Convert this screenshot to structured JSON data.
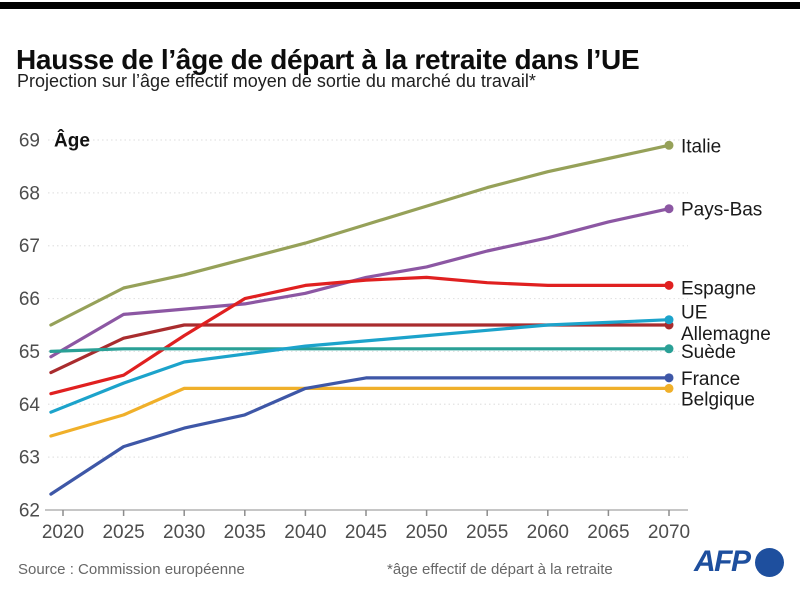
{
  "header": {
    "title": "Hausse de l’âge de départ à la retraite dans l’UE",
    "subtitle": "Projection sur l’âge effectif moyen de sortie du marché du travail*"
  },
  "footer": {
    "source": "Source : Commission européenne",
    "note": "*âge effectif de départ à la retraite",
    "logo": "AFP"
  },
  "colors": {
    "afp_blue": "#1e4f9e",
    "grid": "#e3e3e3",
    "axis": "#b3b3b3",
    "tick": "#8c8c8c",
    "axis_text": "#4d4d4d",
    "label_text": "#1a1a1a"
  },
  "chart_data": {
    "type": "line",
    "ylabel": "Âge",
    "ylim": [
      62,
      69
    ],
    "yticks": [
      69,
      68,
      67,
      66,
      65,
      64,
      63,
      62
    ],
    "xticks": [
      2020,
      2025,
      2030,
      2035,
      2040,
      2045,
      2050,
      2055,
      2060,
      2065,
      2070
    ],
    "grid": "horizontal-dotted",
    "legend_position": "right-end-labels",
    "x": [
      2019,
      2025,
      2030,
      2035,
      2040,
      2045,
      2050,
      2055,
      2060,
      2065,
      2070
    ],
    "series": [
      {
        "name": "Italie",
        "color": "#96a159",
        "label_dy": 0,
        "values": [
          65.5,
          66.2,
          66.45,
          66.75,
          67.05,
          67.4,
          67.75,
          68.1,
          68.4,
          68.65,
          68.9
        ]
      },
      {
        "name": "Pays-Bas",
        "color": "#8c57a3",
        "label_dy": 0,
        "values": [
          64.9,
          65.7,
          65.8,
          65.9,
          66.1,
          66.4,
          66.6,
          66.9,
          67.15,
          67.45,
          67.7
        ]
      },
      {
        "name": "Allemagne",
        "color": "#a92c2e",
        "label_dy": 8,
        "values": [
          64.6,
          65.25,
          65.5,
          65.5,
          65.5,
          65.5,
          65.5,
          65.5,
          65.5,
          65.5,
          65.5
        ]
      },
      {
        "name": "Espagne",
        "color": "#e02020",
        "label_dy": 2,
        "values": [
          64.2,
          64.55,
          65.3,
          66.0,
          66.25,
          66.35,
          66.4,
          66.3,
          66.25,
          66.25,
          66.25
        ]
      },
      {
        "name": "Suède",
        "color": "#2aa096",
        "label_dy": 2,
        "values": [
          65.0,
          65.05,
          65.05,
          65.05,
          65.05,
          65.05,
          65.05,
          65.05,
          65.05,
          65.05,
          65.05
        ]
      },
      {
        "name": "UE",
        "color": "#1ca3cb",
        "label_dy": -8,
        "values": [
          63.85,
          64.4,
          64.8,
          64.95,
          65.1,
          65.2,
          65.3,
          65.4,
          65.5,
          65.55,
          65.6
        ]
      },
      {
        "name": "Belgique",
        "color": "#f0b02a",
        "label_dy": 10,
        "values": [
          63.4,
          63.8,
          64.3,
          64.3,
          64.3,
          64.3,
          64.3,
          64.3,
          64.3,
          64.3,
          64.3
        ]
      },
      {
        "name": "France",
        "color": "#3e57a7",
        "label_dy": 0,
        "values": [
          62.3,
          63.2,
          63.55,
          63.8,
          64.3,
          64.5,
          64.5,
          64.5,
          64.5,
          64.5,
          64.5
        ]
      }
    ]
  }
}
